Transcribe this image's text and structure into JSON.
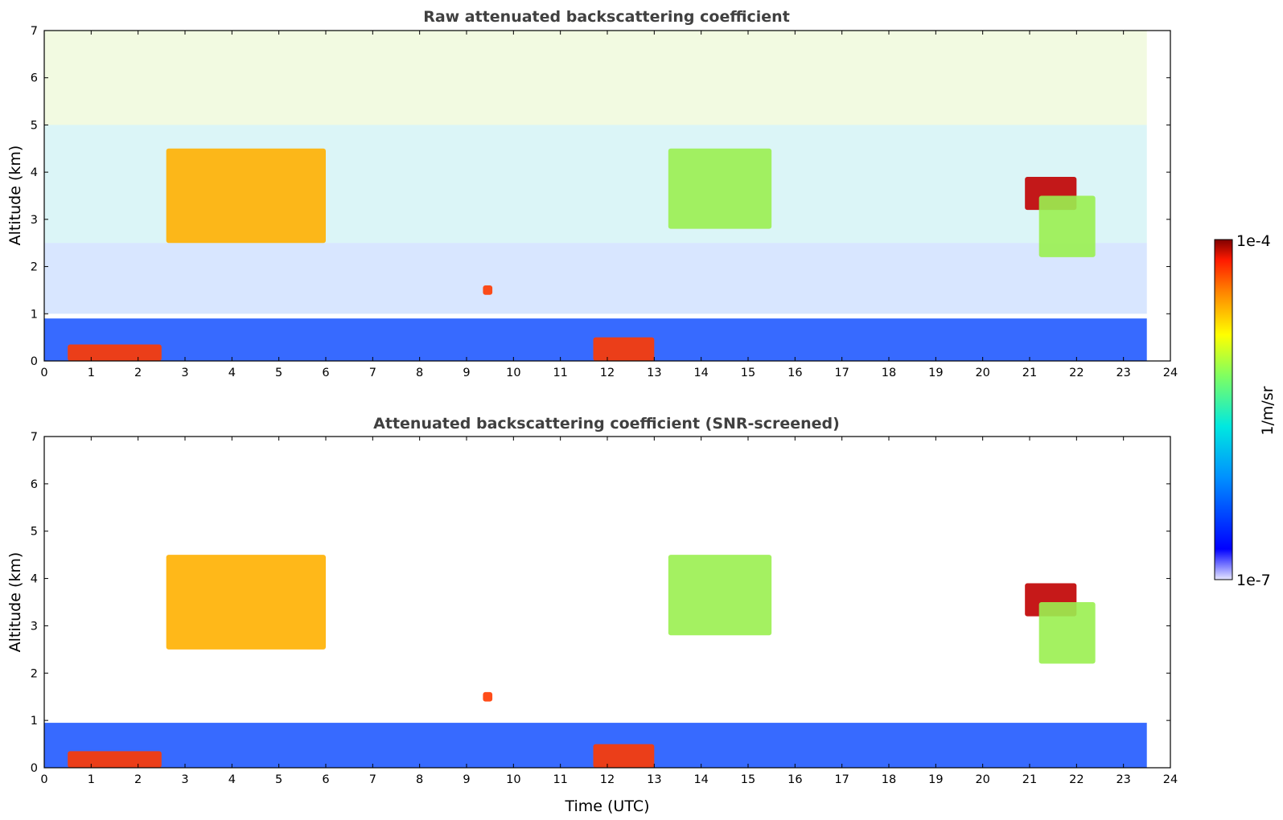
{
  "chart_data": [
    {
      "type": "heatmap",
      "title": "Raw attenuated backscattering coefficient",
      "xlabel": "",
      "ylabel": "Altitude (km)",
      "xlim": [
        0,
        24
      ],
      "ylim": [
        0,
        7
      ],
      "x_ticks": [
        "0",
        "1",
        "2",
        "3",
        "4",
        "5",
        "6",
        "7",
        "8",
        "9",
        "10",
        "11",
        "12",
        "13",
        "14",
        "15",
        "16",
        "17",
        "18",
        "19",
        "20",
        "21",
        "22",
        "23",
        "24"
      ],
      "y_ticks": [
        "0",
        "1",
        "2",
        "3",
        "4",
        "5",
        "6",
        "7"
      ],
      "data_extent_hours": [
        0,
        23.5
      ],
      "features": [
        {
          "name": "surface boundary layer",
          "t_start": 0,
          "t_end": 23.5,
          "alt_bottom": 0,
          "alt_top": 0.9,
          "level": "low"
        },
        {
          "name": "low cloud",
          "t_start": 0.5,
          "t_end": 2.5,
          "alt_bottom": 0,
          "alt_top": 0.35,
          "level": "high"
        },
        {
          "name": "rising aerosol layer",
          "t_start": 2.6,
          "t_end": 6.0,
          "alt_bottom": 2.5,
          "alt_top": 4.5,
          "level": "mid-high"
        },
        {
          "name": "small cloud",
          "t_start": 9.35,
          "t_end": 9.55,
          "alt_bottom": 1.4,
          "alt_top": 1.6,
          "level": "high"
        },
        {
          "name": "low cloud",
          "t_start": 11.7,
          "t_end": 13.0,
          "alt_bottom": 0,
          "alt_top": 0.5,
          "level": "high"
        },
        {
          "name": "elevated layer",
          "t_start": 13.3,
          "t_end": 15.5,
          "alt_bottom": 2.8,
          "alt_top": 4.5,
          "level": "mid"
        },
        {
          "name": "cloud layer",
          "t_start": 20.9,
          "t_end": 22.0,
          "alt_bottom": 3.2,
          "alt_top": 3.9,
          "level": "very high"
        },
        {
          "name": "aerosol patch",
          "t_start": 21.2,
          "t_end": 22.4,
          "alt_bottom": 2.2,
          "alt_top": 3.5,
          "level": "mid"
        }
      ]
    },
    {
      "type": "heatmap",
      "title": "Attenuated backscattering coefficient (SNR-screened)",
      "xlabel": "Time (UTC)",
      "ylabel": "Altitude (km)",
      "xlim": [
        0,
        24
      ],
      "ylim": [
        0,
        7
      ],
      "x_ticks": [
        "0",
        "1",
        "2",
        "3",
        "4",
        "5",
        "6",
        "7",
        "8",
        "9",
        "10",
        "11",
        "12",
        "13",
        "14",
        "15",
        "16",
        "17",
        "18",
        "19",
        "20",
        "21",
        "22",
        "23",
        "24"
      ],
      "y_ticks": [
        "0",
        "1",
        "2",
        "3",
        "4",
        "5",
        "6",
        "7"
      ],
      "data_extent_hours": [
        0,
        23.5
      ],
      "features": [
        {
          "name": "surface boundary layer",
          "t_start": 0,
          "t_end": 23.5,
          "alt_bottom": 0,
          "alt_top": 0.95,
          "level": "low"
        },
        {
          "name": "low cloud",
          "t_start": 0.5,
          "t_end": 2.5,
          "alt_bottom": 0,
          "alt_top": 0.35,
          "level": "high"
        },
        {
          "name": "rising aerosol layer",
          "t_start": 2.6,
          "t_end": 6.0,
          "alt_bottom": 2.5,
          "alt_top": 4.5,
          "level": "mid-high"
        },
        {
          "name": "small cloud",
          "t_start": 9.35,
          "t_end": 9.55,
          "alt_bottom": 1.4,
          "alt_top": 1.6,
          "level": "high"
        },
        {
          "name": "low cloud",
          "t_start": 11.7,
          "t_end": 13.0,
          "alt_bottom": 0,
          "alt_top": 0.5,
          "level": "high"
        },
        {
          "name": "elevated layer",
          "t_start": 13.3,
          "t_end": 15.5,
          "alt_bottom": 2.8,
          "alt_top": 4.5,
          "level": "mid"
        },
        {
          "name": "cloud layer",
          "t_start": 20.9,
          "t_end": 22.0,
          "alt_bottom": 3.2,
          "alt_top": 3.9,
          "level": "very high"
        },
        {
          "name": "aerosol patch",
          "t_start": 21.2,
          "t_end": 22.4,
          "alt_bottom": 2.2,
          "alt_top": 3.5,
          "level": "mid"
        }
      ]
    }
  ],
  "colorbar": {
    "max_label": "1e-4",
    "min_label": "1e-7",
    "unit": "1/m/sr",
    "colormap": "jet"
  }
}
